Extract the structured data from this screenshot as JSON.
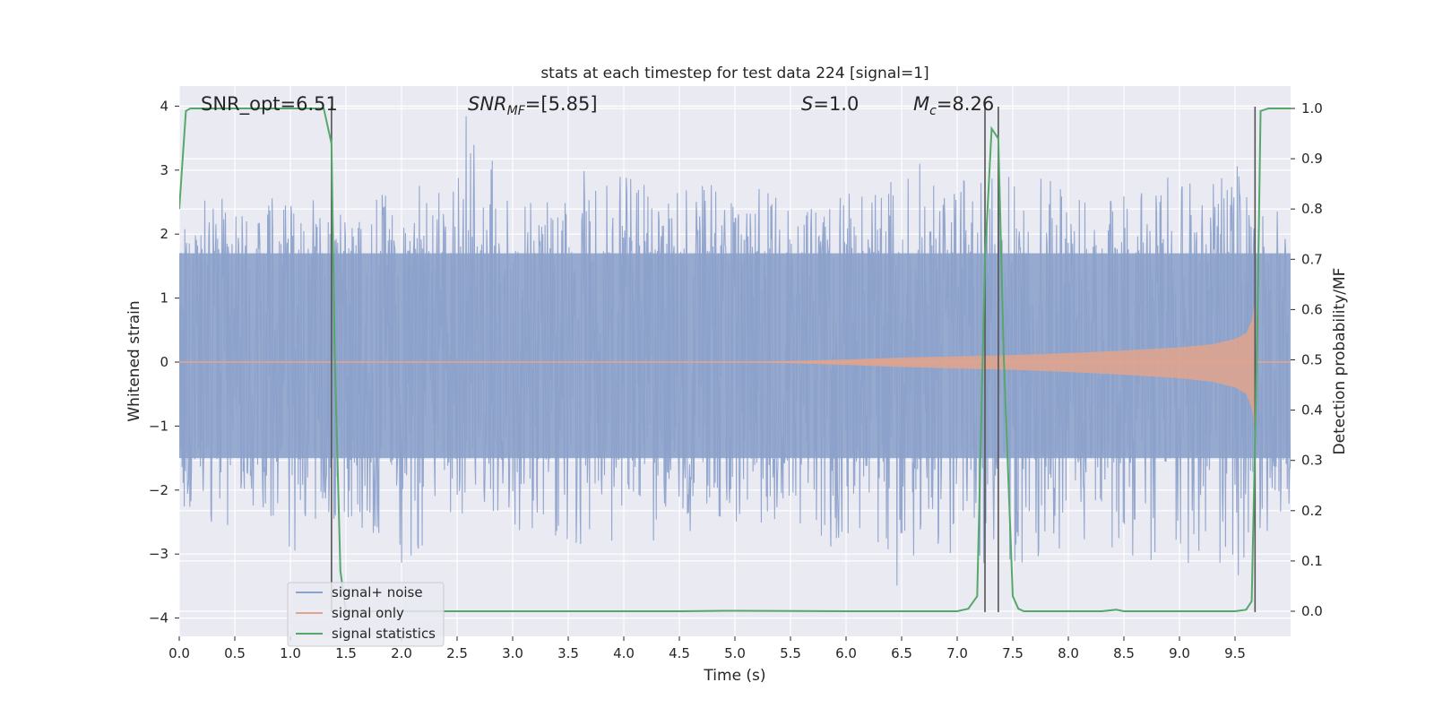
{
  "chart_data": {
    "type": "line",
    "title": "stats at each timestep for test data 224 [signal=1]",
    "xlabel": "Time (s)",
    "ylabel_left": "Whitened strain",
    "ylabel_right": "Detection probability/MF",
    "xlim": [
      0.0,
      10.0
    ],
    "ylim_left": [
      -4.15,
      4.4
    ],
    "ylim_right": [
      0.0,
      1.0
    ],
    "x_ticks": [
      "0.0",
      "0.5",
      "1.0",
      "1.5",
      "2.0",
      "2.5",
      "3.0",
      "3.5",
      "4.0",
      "4.5",
      "5.0",
      "5.5",
      "6.0",
      "6.5",
      "7.0",
      "7.5",
      "8.0",
      "8.5",
      "9.0",
      "9.5"
    ],
    "y_ticks_left": [
      "4",
      "3",
      "2",
      "1",
      "0",
      "−1",
      "−2",
      "−3",
      "−4"
    ],
    "y_ticks_right": [
      "1.0",
      "0.9",
      "0.8",
      "0.7",
      "0.6",
      "0.5",
      "0.4",
      "0.3",
      "0.2",
      "0.1",
      "0.0"
    ],
    "grid": true,
    "legend_position": "lower-left",
    "annotations": {
      "snr_opt": "SNR_opt=6.51",
      "snr_mf_symbol": "SNR",
      "snr_mf_subscript": "MF",
      "snr_mf_value": "=[5.85]",
      "s_symbol": "S",
      "s_value": "=1.0",
      "mc_symbol": "M",
      "mc_subscript": "c",
      "mc_value": "=8.26"
    },
    "vertical_markers_x": [
      1.37,
      7.25,
      7.37,
      9.68
    ],
    "series": [
      {
        "name": "signal+ noise",
        "color": "#8da2cb",
        "band_envelope": {
          "x": [
            0.0,
            0.05,
            0.3,
            0.5,
            0.8,
            1.0,
            1.3,
            1.5,
            2.0,
            2.5,
            2.55,
            3.0,
            3.5,
            3.8,
            4.0,
            4.5,
            5.0,
            5.5,
            6.0,
            6.5,
            7.0,
            7.5,
            8.0,
            8.5,
            9.0,
            9.3,
            9.5,
            9.65,
            9.9,
            10.0
          ],
          "upper": [
            2.8,
            2.2,
            2.7,
            2.5,
            2.8,
            2.6,
            2.5,
            2.4,
            2.8,
            2.7,
            4.0,
            2.6,
            2.8,
            3.4,
            3.0,
            2.7,
            2.9,
            2.5,
            2.6,
            3.3,
            2.9,
            3.0,
            2.8,
            2.9,
            3.0,
            2.8,
            3.3,
            2.6,
            2.4,
            2.4
          ],
          "lower": [
            -2.2,
            -2.3,
            -3.5,
            -2.6,
            -2.4,
            -3.3,
            -2.6,
            -2.5,
            -3.2,
            -2.6,
            -2.7,
            -2.6,
            -2.9,
            -2.8,
            -3.0,
            -2.7,
            -2.8,
            -2.8,
            -3.0,
            -3.6,
            -3.0,
            -3.3,
            -2.9,
            -3.0,
            -3.2,
            -3.0,
            -3.8,
            -3.2,
            -2.4,
            -2.3
          ]
        },
        "core_band": [
          -1.5,
          1.7
        ]
      },
      {
        "name": "signal only",
        "color": "#e3a48c",
        "x": [
          0.0,
          5.0,
          5.6,
          6.0,
          6.5,
          7.0,
          7.5,
          8.0,
          8.5,
          9.0,
          9.3,
          9.5,
          9.6,
          9.65,
          9.68
        ],
        "amplitude": [
          0.0,
          0.0,
          0.02,
          0.04,
          0.07,
          0.09,
          0.11,
          0.14,
          0.18,
          0.23,
          0.28,
          0.36,
          0.45,
          0.65,
          0.95
        ]
      },
      {
        "name": "signal statistics",
        "color": "#56a86a",
        "axis": "right",
        "x": [
          0.0,
          0.06,
          0.1,
          0.3,
          0.6,
          0.9,
          1.2,
          1.3,
          1.37,
          1.4,
          1.45,
          1.5,
          2.0,
          3.0,
          4.0,
          4.5,
          4.9,
          5.0,
          6.0,
          7.0,
          7.1,
          7.18,
          7.25,
          7.31,
          7.37,
          7.42,
          7.5,
          7.55,
          7.6,
          8.0,
          8.3,
          8.43,
          8.5,
          9.0,
          9.5,
          9.6,
          9.65,
          9.7,
          9.73,
          9.8,
          10.0
        ],
        "y": [
          0.8,
          0.995,
          1.0,
          1.0,
          1.0,
          1.0,
          1.0,
          1.0,
          0.93,
          0.5,
          0.08,
          0.0,
          0.0,
          0.0,
          0.0,
          0.0,
          0.001,
          0.001,
          0.0,
          0.0,
          0.005,
          0.03,
          0.7,
          0.96,
          0.94,
          0.5,
          0.03,
          0.005,
          0.0,
          0.0,
          0.0,
          0.003,
          0.0,
          0.0,
          0.0,
          0.003,
          0.02,
          0.55,
          0.995,
          1.0,
          1.0
        ]
      }
    ]
  }
}
